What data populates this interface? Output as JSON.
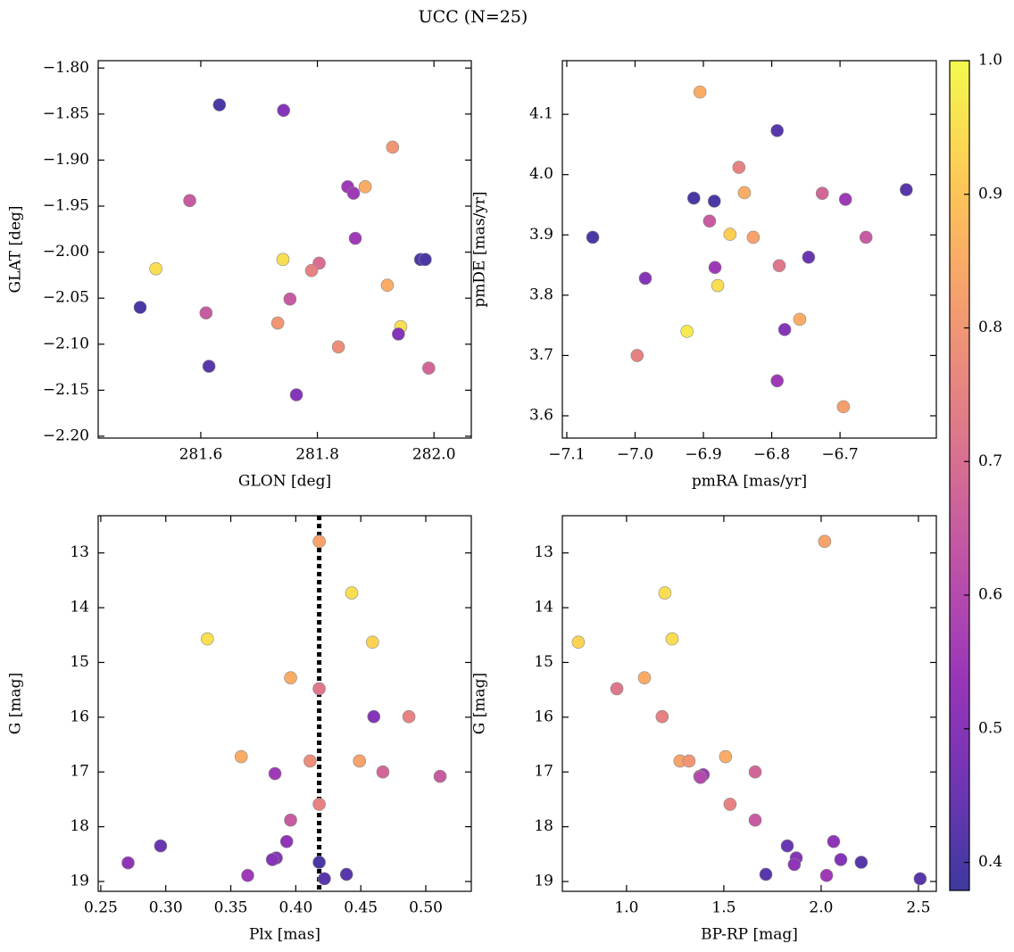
{
  "title": "UCC (N=25)",
  "chart_data": [
    {
      "type": "scatter",
      "xlabel": "GLON [deg]",
      "ylabel": "GLAT [deg]",
      "xlim": [
        281.424,
        282.064
      ],
      "ylim": [
        -2.202,
        -1.792
      ],
      "xticks": [
        281.6,
        281.8,
        {
          "value": 282.0,
          "label": "282.0"
        }
      ],
      "yticks": [
        {
          "value": -1.8,
          "label": "−1.80"
        },
        {
          "value": -1.85,
          "label": "−1.85"
        },
        {
          "value": -1.9,
          "label": "−1.90"
        },
        {
          "value": -1.95,
          "label": "−1.95"
        },
        {
          "value": -2.0,
          "label": "−2.00"
        },
        {
          "value": -2.05,
          "label": "−2.05"
        },
        {
          "value": -2.1,
          "label": "−2.10"
        },
        {
          "value": -2.15,
          "label": "−2.15"
        },
        {
          "value": -2.2,
          "label": "−2.20"
        }
      ],
      "x": [
        281.632,
        281.742,
        281.929,
        281.581,
        281.852,
        281.862,
        281.882,
        281.865,
        281.523,
        281.741,
        281.977,
        281.985,
        281.803,
        281.79,
        281.92,
        281.496,
        281.609,
        281.753,
        281.943,
        281.732,
        281.939,
        281.836,
        281.614,
        281.991,
        281.764
      ],
      "values": [
        -1.84,
        -1.846,
        -1.886,
        -1.944,
        -1.929,
        -1.936,
        -1.929,
        -1.985,
        -2.018,
        -2.008,
        -2.008,
        -2.008,
        -2.012,
        -2.02,
        -2.036,
        -2.06,
        -2.066,
        -2.051,
        -2.081,
        -2.077,
        -2.089,
        -2.103,
        -2.124,
        -2.126,
        -2.155
      ],
      "c": [
        0.4,
        0.5,
        0.8,
        0.65,
        0.55,
        0.55,
        0.85,
        0.55,
        0.95,
        0.95,
        0.4,
        0.4,
        0.7,
        0.75,
        0.85,
        0.4,
        0.65,
        0.65,
        0.95,
        0.8,
        0.5,
        0.78,
        0.42,
        0.68,
        0.5
      ]
    },
    {
      "type": "scatter",
      "xlabel": "pmRA [mas/yr]",
      "ylabel": "pmDE [mas/yr]",
      "xlim": [
        -7.1065,
        -6.559
      ],
      "ylim": [
        3.563,
        4.189
      ],
      "xticks": [
        {
          "value": -7.1,
          "label": "−7.1"
        },
        {
          "value": -7.0,
          "label": "−7.0"
        },
        {
          "value": -6.9,
          "label": "−6.9"
        },
        {
          "value": -6.8,
          "label": "−6.8"
        },
        {
          "value": -6.7,
          "label": "−6.7"
        }
      ],
      "yticks": [
        3.6,
        3.7,
        3.8,
        3.9,
        {
          "value": 4.0,
          "label": "4.0"
        },
        4.1
      ],
      "x": [
        -6.905,
        -6.792,
        -6.848,
        -6.914,
        -6.884,
        -6.84,
        -6.726,
        -6.692,
        -6.603,
        -7.062,
        -6.891,
        -6.861,
        -6.827,
        -6.662,
        -6.746,
        -6.789,
        -6.883,
        -6.985,
        -6.879,
        -6.759,
        -6.924,
        -6.781,
        -6.997,
        -6.792,
        -6.695
      ],
      "values": [
        4.137,
        4.073,
        4.012,
        3.961,
        3.956,
        3.97,
        3.969,
        3.959,
        3.975,
        3.896,
        3.923,
        3.901,
        3.896,
        3.896,
        3.863,
        3.849,
        3.846,
        3.828,
        3.816,
        3.76,
        3.74,
        3.743,
        3.7,
        3.658,
        3.615
      ],
      "c": [
        0.85,
        0.42,
        0.75,
        0.4,
        0.4,
        0.85,
        0.68,
        0.55,
        0.42,
        0.4,
        0.65,
        0.92,
        0.83,
        0.65,
        0.45,
        0.72,
        0.55,
        0.5,
        0.95,
        0.85,
        0.97,
        0.5,
        0.75,
        0.55,
        0.82
      ]
    },
    {
      "type": "scatter",
      "xlabel": "Plx [mas]",
      "ylabel": "G [mag]",
      "xlim": [
        0.248,
        0.535
      ],
      "ylim": [
        19.18,
        12.32
      ],
      "vline": 0.418,
      "xticks": [
        0.25,
        {
          "value": 0.3,
          "label": "0.30"
        },
        0.35,
        {
          "value": 0.4,
          "label": "0.40"
        },
        0.45,
        {
          "value": 0.5,
          "label": "0.50"
        }
      ],
      "yticks": [
        13,
        14,
        15,
        16,
        17,
        18,
        19
      ],
      "x": [
        0.418,
        0.443,
        0.332,
        0.459,
        0.396,
        0.418,
        0.46,
        0.487,
        0.358,
        0.411,
        0.449,
        0.384,
        0.467,
        0.511,
        0.418,
        0.396,
        0.393,
        0.296,
        0.271,
        0.385,
        0.382,
        0.418,
        0.363,
        0.439,
        0.422
      ],
      "values": [
        12.79,
        13.73,
        14.57,
        14.63,
        15.28,
        15.48,
        15.99,
        15.99,
        16.72,
        16.8,
        16.8,
        17.03,
        17.0,
        17.08,
        17.59,
        17.88,
        18.27,
        18.35,
        18.66,
        18.57,
        18.6,
        18.65,
        18.89,
        18.87,
        18.95
      ],
      "c": [
        0.83,
        0.95,
        0.95,
        0.93,
        0.85,
        0.72,
        0.5,
        0.75,
        0.85,
        0.78,
        0.83,
        0.55,
        0.68,
        0.65,
        0.75,
        0.65,
        0.52,
        0.45,
        0.52,
        0.5,
        0.5,
        0.4,
        0.55,
        0.42,
        0.42
      ]
    },
    {
      "type": "scatter",
      "xlabel": "BP-RP [mag]",
      "ylabel": "G [mag]",
      "xlim": [
        0.67,
        2.592
      ],
      "ylim": [
        19.18,
        12.32
      ],
      "xticks": [
        {
          "value": 1.0,
          "label": "1.0"
        },
        1.5,
        {
          "value": 2.0,
          "label": "2.0"
        },
        2.5
      ],
      "yticks": [
        13,
        14,
        15,
        16,
        17,
        18,
        19
      ],
      "x": [
        2.018,
        1.197,
        1.234,
        0.752,
        1.092,
        0.95,
        1.183,
        1.509,
        1.275,
        1.321,
        1.661,
        1.394,
        1.376,
        1.532,
        1.661,
        2.064,
        1.826,
        1.872,
        2.101,
        2.206,
        1.862,
        1.716,
        2.028,
        2.509,
        1.38
      ],
      "values": [
        12.79,
        13.73,
        14.57,
        14.63,
        15.28,
        15.48,
        15.99,
        16.72,
        16.8,
        16.8,
        17.0,
        17.05,
        17.08,
        17.59,
        17.88,
        18.27,
        18.35,
        18.57,
        18.6,
        18.65,
        18.69,
        18.87,
        18.89,
        18.95,
        17.1
      ],
      "c": [
        0.83,
        0.95,
        0.95,
        0.93,
        0.85,
        0.72,
        0.75,
        0.85,
        0.83,
        0.8,
        0.68,
        0.55,
        0.62,
        0.75,
        0.65,
        0.52,
        0.45,
        0.5,
        0.5,
        0.42,
        0.52,
        0.42,
        0.55,
        0.42,
        0.6
      ]
    }
  ],
  "colorbar": {
    "colormap": "plasma",
    "alpha": 0.8,
    "lim": [
      0.379,
      1.0
    ],
    "ticks": [
      0.4,
      0.5,
      0.6,
      0.7,
      0.8,
      0.9,
      {
        "value": 1.0,
        "label": "1.0"
      }
    ]
  }
}
